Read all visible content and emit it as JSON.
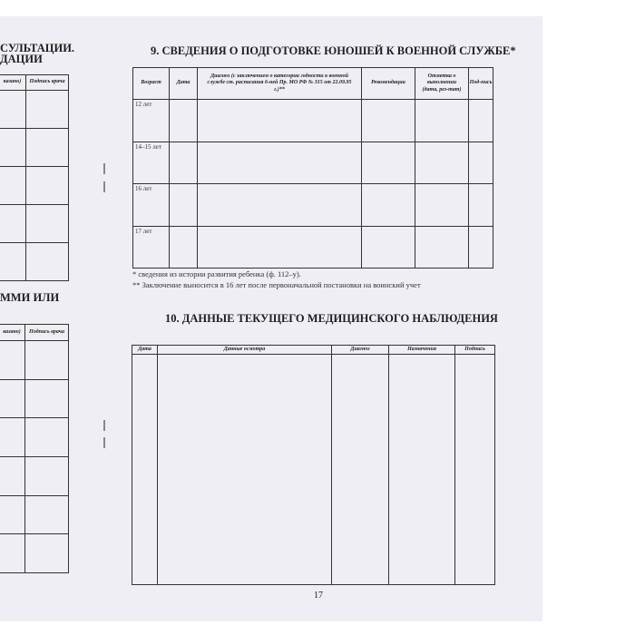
{
  "left_page": {
    "section_a_title": [
      "СУЛЬТАЦИИ.",
      "ДАЦИИ"
    ],
    "section_a_headers": [
      "казано)",
      "Подпись врача"
    ],
    "section_b_title": "ММИ ИЛИ",
    "section_b_headers": [
      "казано)",
      "Подпись врача"
    ]
  },
  "section9": {
    "title": "9. СВЕДЕНИЯ О ПОДГОТОВКЕ ЮНОШЕЙ К ВОЕННОЙ СЛУЖБЕ*",
    "headers": [
      "Возраст",
      "Дата",
      "Диагноз (с заключением о категории годности к военной службе ст. расписания 6-ней Пр. МО РФ № 315 от 22.09.95 г.)**",
      "Рекомендации",
      "Отметка о выполнении (дата, рез-тат)",
      "Под-пись"
    ],
    "rows": [
      "12 лет",
      "14–15 лет",
      "16 лет",
      "17 лет"
    ],
    "footnotes": [
      "* сведения из истории развития ребенка (ф. 112–у).",
      "** Заключение выносится в 16 лет после первоначальной постановки на воинский учет"
    ]
  },
  "section10": {
    "title": "10. ДАННЫЕ ТЕКУЩЕГО МЕДИЦИНСКОГО НАБЛЮДЕНИЯ",
    "headers": [
      "Дата",
      "Данные осмотра",
      "Диагноз",
      "Назначения",
      "Подпись"
    ]
  },
  "page_number": "17"
}
